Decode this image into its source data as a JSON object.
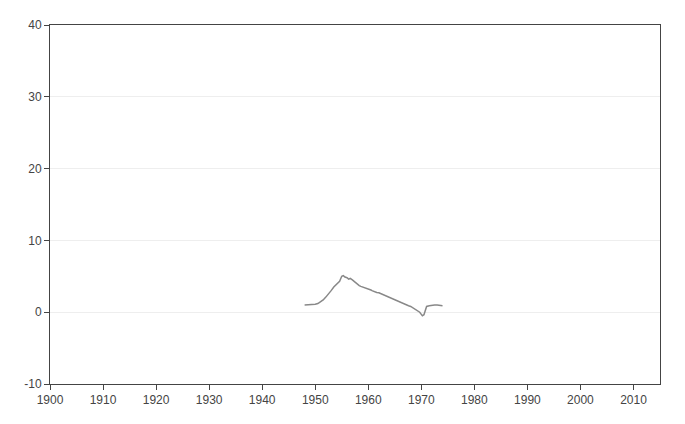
{
  "chart_data": {
    "type": "line",
    "x": [
      1948,
      1948.5,
      1949,
      1949.5,
      1950,
      1950.5,
      1951,
      1951.5,
      1952,
      1952.5,
      1953,
      1953.5,
      1954,
      1954.3,
      1954.6,
      1955,
      1955.3,
      1955.6,
      1956,
      1956.3,
      1956.6,
      1957,
      1957.3,
      1957.6,
      1958,
      1958.3,
      1958.6,
      1959,
      1959.3,
      1959.6,
      1960,
      1960.3,
      1960.5,
      1960.7,
      1961,
      1961.3,
      1961.6,
      1962,
      1962.3,
      1962.6,
      1963,
      1963.3,
      1963.6,
      1964,
      1964.3,
      1964.6,
      1965,
      1965.3,
      1965.6,
      1966,
      1966.3,
      1966.6,
      1967,
      1967.3,
      1967.6,
      1968,
      1968.3,
      1968.6,
      1969,
      1969.3,
      1969.5,
      1969.7,
      1970,
      1970.2,
      1970.5,
      1971,
      1971.5,
      1972,
      1972.5,
      1973,
      1973.5,
      1974
    ],
    "values": [
      1.0,
      1.0,
      1.05,
      1.05,
      1.1,
      1.2,
      1.4,
      1.7,
      2.1,
      2.5,
      3.0,
      3.5,
      3.9,
      4.1,
      4.3,
      5.0,
      5.1,
      4.9,
      4.8,
      4.6,
      4.7,
      4.5,
      4.3,
      4.1,
      3.8,
      3.7,
      3.6,
      3.5,
      3.5,
      3.4,
      3.3,
      3.2,
      3.1,
      3.0,
      2.9,
      2.8,
      2.75,
      2.7,
      2.6,
      2.5,
      2.4,
      2.3,
      2.2,
      2.0,
      1.9,
      1.8,
      1.7,
      1.6,
      1.5,
      1.4,
      1.3,
      1.2,
      1.1,
      1.0,
      0.9,
      0.8,
      0.65,
      0.5,
      0.35,
      0.2,
      0.1,
      0.0,
      -0.3,
      -0.5,
      -0.35,
      0.8,
      0.9,
      1.0,
      1.0,
      1.0,
      0.95,
      0.9
    ],
    "color": "#888888",
    "xlim": [
      1900,
      2015
    ],
    "ylim": [
      -10,
      40
    ],
    "xticks": [
      1900,
      1910,
      1920,
      1930,
      1940,
      1950,
      1960,
      1970,
      1980,
      1990,
      2000,
      2010
    ],
    "yticks": [
      -10,
      0,
      10,
      20,
      30,
      40
    ],
    "grid": "y"
  }
}
